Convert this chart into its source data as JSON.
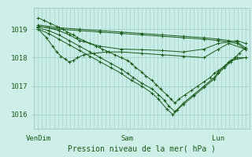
{
  "background_color": "#ceeee8",
  "plot_bg_color": "#c8ece6",
  "grid_color": "#9eccc4",
  "line_color": "#1a5c1a",
  "xlabel": "Pression niveau de la mer( hPa )",
  "xtick_labels": [
    "VenDim",
    "Sam",
    "Lun"
  ],
  "xtick_positions": [
    0.0,
    0.43,
    0.87
  ],
  "ylim": [
    1015.5,
    1019.75
  ],
  "yticks": [
    1016,
    1017,
    1018,
    1019
  ],
  "xlim": [
    -0.02,
    1.02
  ],
  "series": [
    {
      "x": [
        0.0,
        0.1,
        0.2,
        0.3,
        0.4,
        0.5,
        0.6,
        0.7,
        0.8,
        0.87,
        0.92,
        0.96,
        1.0
      ],
      "y": [
        1019.15,
        1019.05,
        1019.0,
        1018.95,
        1018.9,
        1018.85,
        1018.8,
        1018.75,
        1018.7,
        1018.65,
        1018.6,
        1018.55,
        1018.35
      ]
    },
    {
      "x": [
        0.0,
        0.1,
        0.2,
        0.3,
        0.4,
        0.5,
        0.6,
        0.7,
        0.8,
        0.87,
        0.92,
        0.96,
        1.0
      ],
      "y": [
        1019.1,
        1019.0,
        1018.95,
        1018.9,
        1018.85,
        1018.8,
        1018.75,
        1018.7,
        1018.65,
        1018.6,
        1018.55,
        1018.5,
        1018.3
      ]
    },
    {
      "x": [
        0.0,
        0.05,
        0.1,
        0.15,
        0.2,
        0.3,
        0.4,
        0.5,
        0.6,
        0.7,
        0.8,
        0.87,
        0.92,
        0.96,
        1.0
      ],
      "y": [
        1019.1,
        1019.05,
        1018.95,
        1018.8,
        1018.6,
        1018.4,
        1018.3,
        1018.28,
        1018.25,
        1018.2,
        1018.3,
        1018.5,
        1018.55,
        1018.6,
        1018.5
      ]
    },
    {
      "x": [
        0.0,
        0.04,
        0.07,
        0.09,
        0.11,
        0.13,
        0.15,
        0.17,
        0.19,
        0.22,
        0.27,
        0.33,
        0.4,
        0.5,
        0.6,
        0.7,
        0.8,
        0.87,
        0.92,
        1.0
      ],
      "y": [
        1019.0,
        1018.7,
        1018.4,
        1018.2,
        1018.05,
        1017.95,
        1017.85,
        1017.9,
        1018.0,
        1018.1,
        1018.15,
        1018.2,
        1018.2,
        1018.15,
        1018.1,
        1018.05,
        1018.0,
        1018.3,
        1018.5,
        1018.3
      ]
    },
    {
      "x": [
        0.0,
        0.05,
        0.1,
        0.15,
        0.2,
        0.25,
        0.3,
        0.35,
        0.4,
        0.43,
        0.46,
        0.5,
        0.55,
        0.58,
        0.61,
        0.63,
        0.66,
        0.7,
        0.75,
        0.8,
        0.85,
        0.87,
        0.9,
        0.93,
        1.0
      ],
      "y": [
        1019.05,
        1018.95,
        1018.8,
        1018.6,
        1018.4,
        1018.2,
        1018.0,
        1017.8,
        1017.6,
        1017.45,
        1017.3,
        1017.1,
        1016.9,
        1016.7,
        1016.5,
        1016.3,
        1016.1,
        1016.4,
        1016.7,
        1017.0,
        1017.3,
        1017.5,
        1017.7,
        1017.9,
        1018.0
      ]
    },
    {
      "x": [
        0.0,
        0.05,
        0.1,
        0.15,
        0.2,
        0.25,
        0.3,
        0.35,
        0.4,
        0.45,
        0.5,
        0.55,
        0.58,
        0.62,
        0.65,
        0.67,
        0.7,
        0.75,
        0.8,
        0.85,
        0.87,
        0.9,
        0.93,
        0.96,
        1.0
      ],
      "y": [
        1019.0,
        1018.85,
        1018.65,
        1018.45,
        1018.25,
        1018.05,
        1017.85,
        1017.65,
        1017.45,
        1017.2,
        1017.0,
        1016.75,
        1016.55,
        1016.2,
        1016.0,
        1016.15,
        1016.35,
        1016.65,
        1016.95,
        1017.25,
        1017.45,
        1017.65,
        1017.85,
        1018.0,
        1018.0
      ]
    },
    {
      "x": [
        0.0,
        0.03,
        0.06,
        0.09,
        0.12,
        0.14,
        0.17,
        0.19,
        0.22,
        0.25,
        0.28,
        0.31,
        0.34,
        0.37,
        0.4,
        0.43,
        0.45,
        0.47,
        0.5,
        0.52,
        0.55,
        0.57,
        0.59,
        0.62,
        0.64,
        0.66,
        0.68,
        0.71,
        0.74,
        0.77,
        0.8,
        0.83,
        0.85,
        0.87,
        0.9,
        0.92,
        0.95,
        0.97,
        1.0
      ],
      "y": [
        1019.4,
        1019.3,
        1019.2,
        1019.1,
        1019.0,
        1018.9,
        1018.8,
        1018.7,
        1018.6,
        1018.5,
        1018.4,
        1018.3,
        1018.2,
        1018.1,
        1018.0,
        1017.9,
        1017.8,
        1017.65,
        1017.5,
        1017.35,
        1017.2,
        1017.05,
        1016.9,
        1016.7,
        1016.55,
        1016.4,
        1016.55,
        1016.7,
        1016.85,
        1017.0,
        1017.15,
        1017.3,
        1017.45,
        1017.55,
        1017.7,
        1017.85,
        1018.0,
        1018.15,
        1018.35
      ]
    }
  ]
}
